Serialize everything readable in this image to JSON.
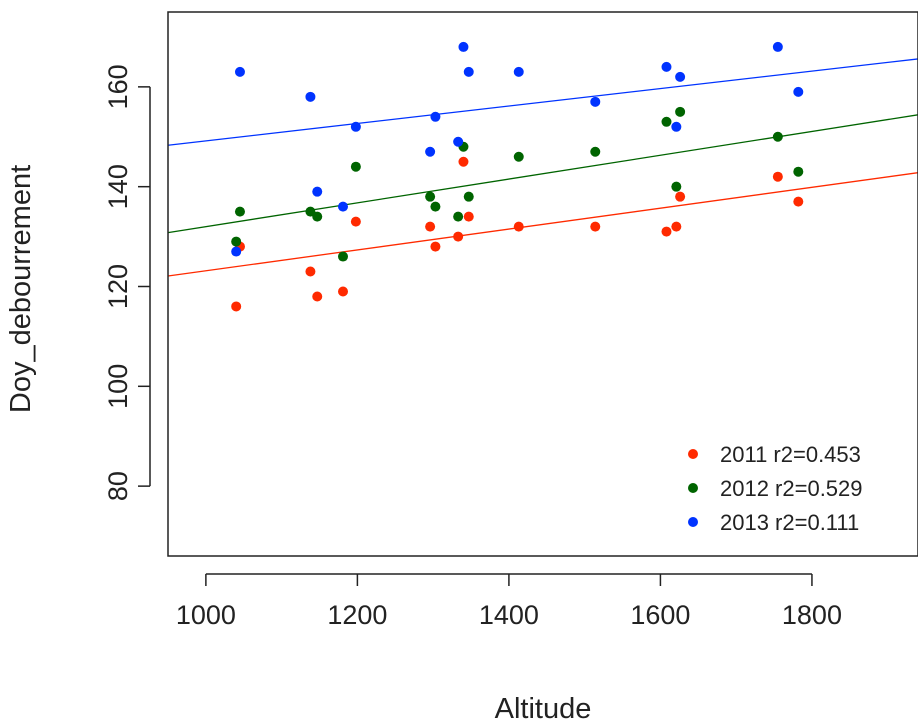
{
  "chart_data": {
    "type": "scatter",
    "title": "",
    "xlabel": "Altitude",
    "ylabel": "Doy_debourrement",
    "xlim": [
      950,
      1940
    ],
    "ylim": [
      66,
      175
    ],
    "xticks": [
      "1000",
      "1200",
      "1400",
      "1600",
      "1800"
    ],
    "yticks": [
      "80",
      "100",
      "120",
      "140",
      "160"
    ],
    "grid": false,
    "legend_position": "bottom-right",
    "series": [
      {
        "name": "2011 r2=0.453",
        "color": "#ff2a00",
        "fit": {
          "x": [
            950,
            1940
          ],
          "y": [
            122.1,
            142.8
          ]
        },
        "points": [
          {
            "x": 1040,
            "y": 116
          },
          {
            "x": 1045,
            "y": 128
          },
          {
            "x": 1138,
            "y": 123
          },
          {
            "x": 1147,
            "y": 118
          },
          {
            "x": 1181,
            "y": 119
          },
          {
            "x": 1198,
            "y": 133
          },
          {
            "x": 1296,
            "y": 132
          },
          {
            "x": 1303,
            "y": 128
          },
          {
            "x": 1333,
            "y": 130
          },
          {
            "x": 1340,
            "y": 145
          },
          {
            "x": 1347,
            "y": 134
          },
          {
            "x": 1413,
            "y": 132
          },
          {
            "x": 1514,
            "y": 132
          },
          {
            "x": 1608,
            "y": 131
          },
          {
            "x": 1621,
            "y": 132
          },
          {
            "x": 1626,
            "y": 138
          },
          {
            "x": 1755,
            "y": 142
          },
          {
            "x": 1782,
            "y": 137
          }
        ]
      },
      {
        "name": "2012 r2=0.529",
        "color": "#006400",
        "fit": {
          "x": [
            950,
            1940
          ],
          "y": [
            130.8,
            154.4
          ]
        },
        "points": [
          {
            "x": 1040,
            "y": 129
          },
          {
            "x": 1045,
            "y": 135
          },
          {
            "x": 1138,
            "y": 135
          },
          {
            "x": 1147,
            "y": 134
          },
          {
            "x": 1181,
            "y": 126
          },
          {
            "x": 1198,
            "y": 144
          },
          {
            "x": 1296,
            "y": 138
          },
          {
            "x": 1303,
            "y": 136
          },
          {
            "x": 1333,
            "y": 134
          },
          {
            "x": 1340,
            "y": 148
          },
          {
            "x": 1347,
            "y": 138
          },
          {
            "x": 1413,
            "y": 146
          },
          {
            "x": 1514,
            "y": 147
          },
          {
            "x": 1608,
            "y": 153
          },
          {
            "x": 1621,
            "y": 140
          },
          {
            "x": 1626,
            "y": 155
          },
          {
            "x": 1755,
            "y": 150
          },
          {
            "x": 1782,
            "y": 143
          }
        ]
      },
      {
        "name": "2013 r2=0.111",
        "color": "#0033ff",
        "fit": {
          "x": [
            950,
            1940
          ],
          "y": [
            148.3,
            165.6
          ]
        },
        "points": [
          {
            "x": 1040,
            "y": 127
          },
          {
            "x": 1045,
            "y": 163
          },
          {
            "x": 1138,
            "y": 158
          },
          {
            "x": 1147,
            "y": 139
          },
          {
            "x": 1181,
            "y": 136
          },
          {
            "x": 1198,
            "y": 152
          },
          {
            "x": 1296,
            "y": 147
          },
          {
            "x": 1303,
            "y": 154
          },
          {
            "x": 1333,
            "y": 149
          },
          {
            "x": 1340,
            "y": 168
          },
          {
            "x": 1347,
            "y": 163
          },
          {
            "x": 1413,
            "y": 163
          },
          {
            "x": 1514,
            "y": 157
          },
          {
            "x": 1608,
            "y": 164
          },
          {
            "x": 1621,
            "y": 152
          },
          {
            "x": 1626,
            "y": 162
          },
          {
            "x": 1755,
            "y": 168
          },
          {
            "x": 1782,
            "y": 159
          }
        ]
      }
    ]
  }
}
